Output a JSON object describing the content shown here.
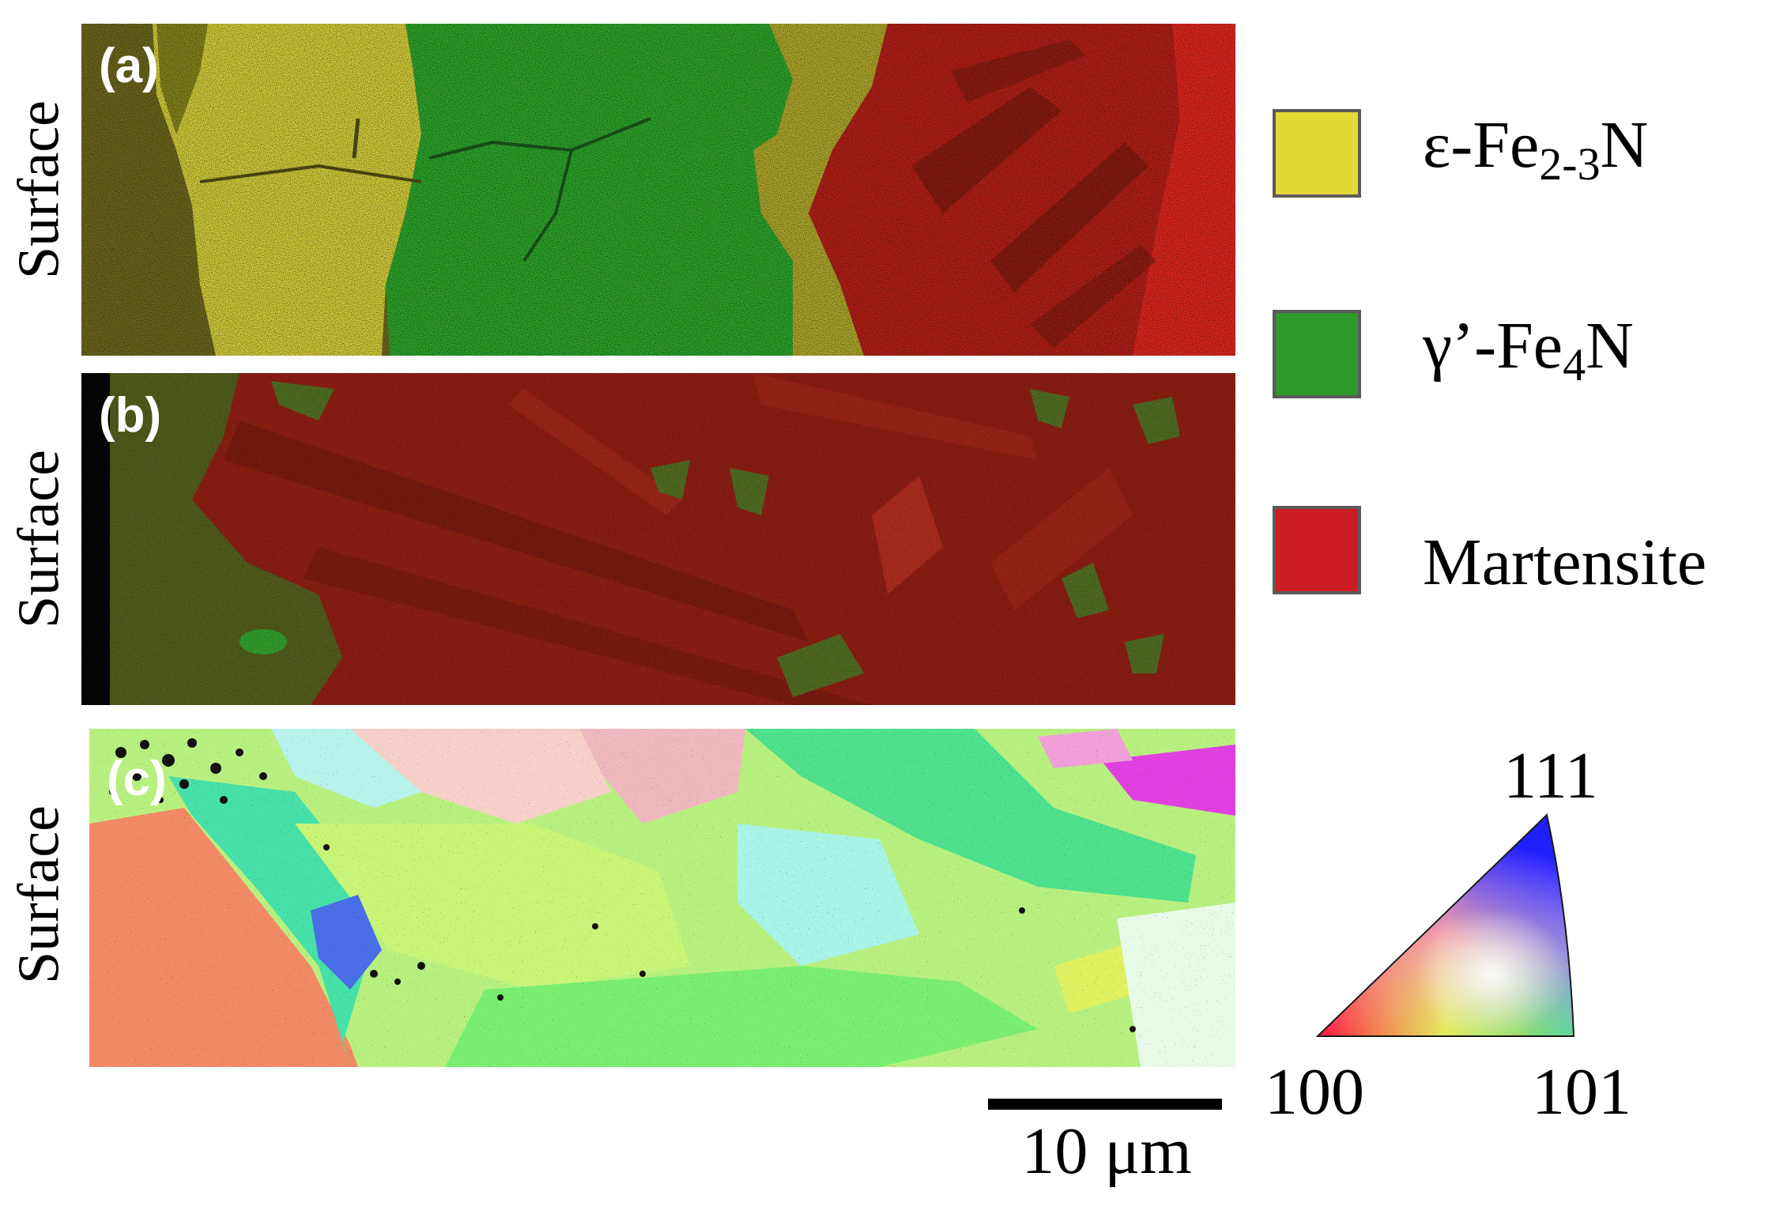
{
  "panels": [
    {
      "id": "a",
      "tag": "(a)",
      "side_label": "Surface",
      "content": "phase-map"
    },
    {
      "id": "b",
      "tag": "(b)",
      "side_label": "Surface",
      "content": "phase-map"
    },
    {
      "id": "c",
      "tag": "(c)",
      "side_label": "Surface",
      "content": "ipf-orientation-map"
    }
  ],
  "legend": [
    {
      "prefix": "ε-Fe",
      "sub": "2-3",
      "suffix": "N",
      "color": "#e3d834"
    },
    {
      "prefix": "γ’-Fe",
      "sub": "4",
      "suffix": "N",
      "color": "#2e9a2c"
    },
    {
      "prefix": "Martensite",
      "sub": "",
      "suffix": "",
      "color": "#cc1c24"
    }
  ],
  "ipf_key": {
    "corner_top": "111",
    "corner_left": "100",
    "corner_right": "101"
  },
  "scale_bar": {
    "label": "10 μm"
  },
  "colors": {
    "epsilon": "#d9d23c",
    "gamma_prime": "#2fa82c",
    "martensite": "#c8241c",
    "martensite_dark": "#7a1a10"
  }
}
